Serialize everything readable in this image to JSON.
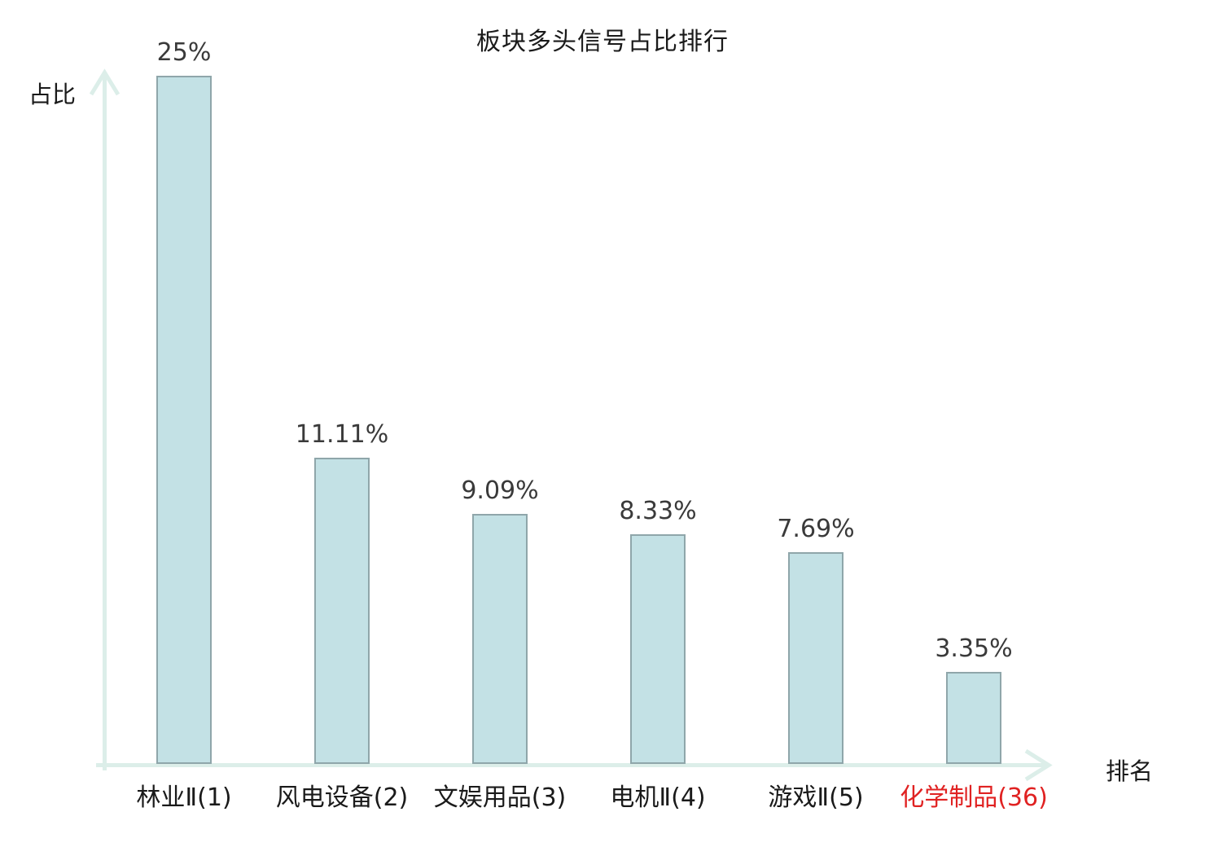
{
  "chart_data": {
    "type": "bar",
    "title": "板块多头信号占比排行",
    "ylabel": "占比",
    "xlabel": "排名",
    "categories": [
      "林业Ⅱ(1)",
      "风电设备(2)",
      "文娱用品(3)",
      "电机Ⅱ(4)",
      "游戏Ⅱ(5)",
      "化学制品(36)"
    ],
    "values": [
      25,
      11.11,
      9.09,
      8.33,
      7.69,
      3.35
    ],
    "value_labels": [
      "25%",
      "11.11%",
      "9.09%",
      "8.33%",
      "7.69%",
      "3.35%"
    ],
    "highlight_index": 5,
    "ylim": [
      0,
      26
    ],
    "grid": false,
    "legend": false,
    "colors": {
      "bar_fill": "#c3e1e5",
      "bar_border": "#8fa6aa",
      "axis": "#dceee9",
      "value_label": "#3a3a3a",
      "category_label": "#1a1a1a",
      "highlight_label": "#e02222",
      "title": "#1a1a1a"
    }
  }
}
